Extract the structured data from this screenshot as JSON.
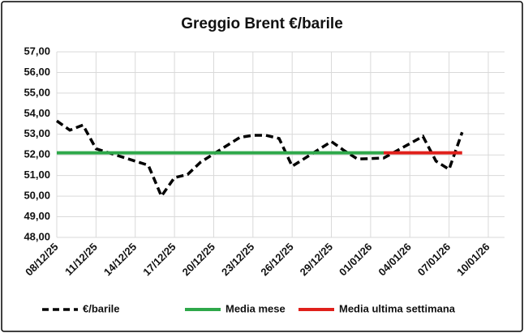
{
  "chart_data": {
    "type": "line",
    "title": "Greggio Brent €/barile",
    "xlim": [
      "08/12/25",
      "10/01/26"
    ],
    "xticks": [
      "08/12/25",
      "11/12/25",
      "14/12/25",
      "17/12/25",
      "20/12/25",
      "23/12/25",
      "26/12/25",
      "29/12/25",
      "01/01/26",
      "04/01/26",
      "07/01/26",
      "10/01/26"
    ],
    "ylim": [
      48,
      57
    ],
    "yticks": [
      {
        "value": 48,
        "label": "48,00"
      },
      {
        "value": 49,
        "label": "49,00"
      },
      {
        "value": 50,
        "label": "50,00"
      },
      {
        "value": 51,
        "label": "51,00"
      },
      {
        "value": 52,
        "label": "52,00"
      },
      {
        "value": 53,
        "label": "53,00"
      },
      {
        "value": 54,
        "label": "54,00"
      },
      {
        "value": 55,
        "label": "55,00"
      },
      {
        "value": 56,
        "label": "56,00"
      },
      {
        "value": 57,
        "label": "57,00"
      }
    ],
    "grid": true,
    "legend": "bottom",
    "series": [
      {
        "name": "€/barile",
        "color": "#000000",
        "dashed": true,
        "x": [
          "08/12/25",
          "09/12/25",
          "10/12/25",
          "11/12/25",
          "12/12/25",
          "15/12/25",
          "16/12/25",
          "17/12/25",
          "18/12/25",
          "19/12/25",
          "22/12/25",
          "23/12/25",
          "24/12/25",
          "25/12/25",
          "26/12/25",
          "29/12/25",
          "30/12/25",
          "31/12/25",
          "02/01/26",
          "05/01/26",
          "06/01/26",
          "07/01/26",
          "08/01/26"
        ],
        "values": [
          53.65,
          53.2,
          53.45,
          52.3,
          52.1,
          51.5,
          50.0,
          50.9,
          51.05,
          51.65,
          52.85,
          52.95,
          52.95,
          52.8,
          51.45,
          52.65,
          52.2,
          51.8,
          51.85,
          52.9,
          51.7,
          51.3,
          53.1
        ]
      },
      {
        "name": "Media mese",
        "color": "#2ea84a",
        "x": [
          "08/12/25",
          "02/01/26"
        ],
        "values": [
          52.1,
          52.1
        ]
      },
      {
        "name": "Media ultima settimana",
        "color": "#e0201b",
        "x": [
          "02/01/26",
          "08/01/26"
        ],
        "values": [
          52.1,
          52.1
        ]
      }
    ]
  }
}
